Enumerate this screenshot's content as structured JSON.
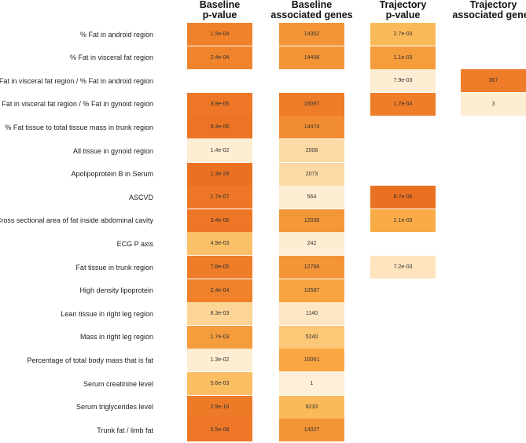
{
  "chart_data": {
    "type": "heatmap",
    "title": "",
    "columns": [
      {
        "key": "baseline_p",
        "line1": "Baseline",
        "line2": "p-value"
      },
      {
        "key": "baseline_genes",
        "line1": "Baseline",
        "line2": "associated genes"
      },
      {
        "key": "trajectory_p",
        "line1": "Trajectory",
        "line2": "p-value"
      },
      {
        "key": "trajectory_genes",
        "line1": "Trajectory",
        "line2": "associated genes"
      }
    ],
    "rows": [
      {
        "label": "% Fat in android region",
        "cells": [
          "1.5e-04",
          "14352",
          "2.7e-03",
          null
        ],
        "shade": [
          0.82,
          0.7,
          0.45,
          null
        ]
      },
      {
        "label": "% Fat in visceral fat region",
        "cells": [
          "2.4e-04",
          "14406",
          "1.1e-03",
          null
        ],
        "shade": [
          0.8,
          0.7,
          0.65,
          null
        ]
      },
      {
        "label": "% Fat in visceral fat region / % Fat in android region",
        "cells": [
          null,
          null,
          "7.9e-03",
          "367"
        ],
        "shade": [
          null,
          null,
          0.05,
          0.85
        ]
      },
      {
        "label": "% Fat in visceral fat region / % Fat in gynoid region",
        "cells": [
          "3.9e-05",
          "15097",
          "1.7e-04",
          "3"
        ],
        "shade": [
          0.88,
          0.85,
          0.85,
          0.05
        ]
      },
      {
        "label": "% Fat tissue to total tissue mass in trunk region",
        "cells": [
          "9.3e-06",
          "14474",
          null,
          null
        ],
        "shade": [
          0.9,
          0.75,
          null,
          null
        ]
      },
      {
        "label": "All tissue in gynoid region",
        "cells": [
          "1.4e-02",
          "2008",
          null,
          null
        ],
        "shade": [
          0.05,
          0.2,
          null,
          null
        ]
      },
      {
        "label": "Apolipoprotein B in Serum",
        "cells": [
          "1.3e-29",
          "2073",
          null,
          null
        ],
        "shade": [
          0.92,
          0.2,
          null,
          null
        ]
      },
      {
        "label": "ASCVD",
        "cells": [
          "1.7e-07",
          "564",
          "8.7e-06",
          null
        ],
        "shade": [
          0.88,
          0.05,
          0.92,
          null
        ]
      },
      {
        "label": "Cross sectional area of fat inside abdominal cavity",
        "cells": [
          "3.4e-06",
          "12038",
          "2.1e-03",
          null
        ],
        "shade": [
          0.88,
          0.68,
          0.55,
          null
        ]
      },
      {
        "label": "ECG P axis",
        "cells": [
          "4.9e-03",
          "242",
          null,
          null
        ],
        "shade": [
          0.4,
          0.05,
          null,
          null
        ]
      },
      {
        "label": "Fat tissue in trunk region",
        "cells": [
          "7.8e-05",
          "12766",
          "7.2e-03",
          null
        ],
        "shade": [
          0.85,
          0.7,
          0.12,
          null
        ]
      },
      {
        "label": "High density lipoprotein",
        "cells": [
          "2.4e-04",
          "10587",
          null,
          null
        ],
        "shade": [
          0.82,
          0.6,
          null,
          null
        ]
      },
      {
        "label": "Lean tissue in right leg region",
        "cells": [
          "8.3e-03",
          "1140",
          null,
          null
        ],
        "shade": [
          0.25,
          0.1,
          null,
          null
        ]
      },
      {
        "label": "Mass in right leg region",
        "cells": [
          "1.7e-03",
          "5240",
          null,
          null
        ],
        "shade": [
          0.65,
          0.35,
          null,
          null
        ]
      },
      {
        "label": "Percentage of total body mass that is fat",
        "cells": [
          "1.3e-02",
          "10061",
          null,
          null
        ],
        "shade": [
          0.05,
          0.58,
          null,
          null
        ]
      },
      {
        "label": "Serum creatinine level",
        "cells": [
          "5.6e-03",
          "1",
          null,
          null
        ],
        "shade": [
          0.42,
          0.03,
          null,
          null
        ]
      },
      {
        "label": "Serum triglycerides level",
        "cells": [
          "2.9e-16",
          "8233",
          null,
          null
        ],
        "shade": [
          0.86,
          0.45,
          null,
          null
        ]
      },
      {
        "label": "Trunk fat / limb fat",
        "cells": [
          "5.5e-08",
          "14027",
          null,
          null
        ],
        "shade": [
          0.88,
          0.7,
          null,
          null
        ]
      }
    ],
    "colors": {
      "low": "#fdf3e1",
      "mid": "#fbb44a",
      "high": "#e8641a"
    }
  }
}
